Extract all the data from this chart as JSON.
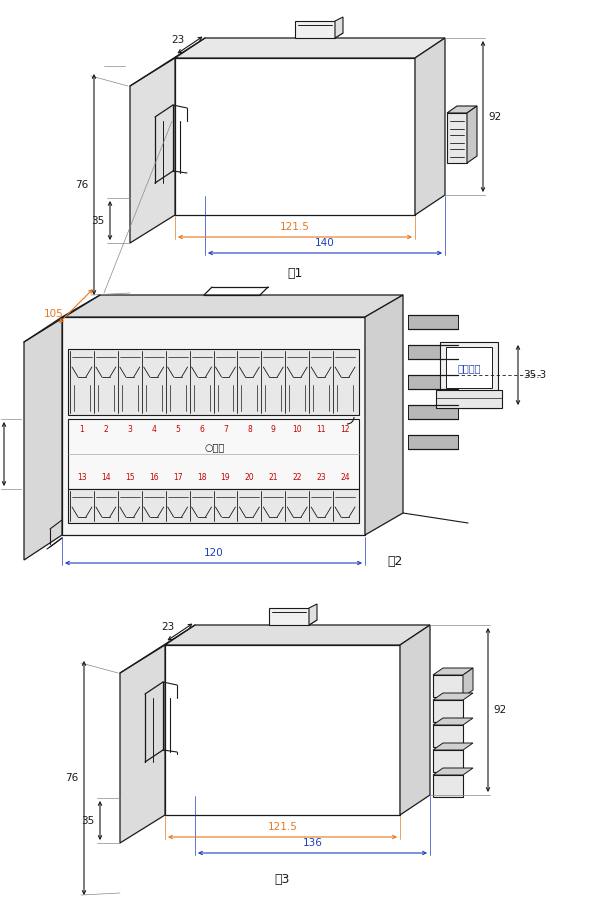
{
  "bg_color": "#ffffff",
  "line_color": "#1a1a1a",
  "dim_color_orange": "#E87820",
  "dim_color_blue": "#1E3EBF",
  "dim_color_red": "#CC0000",
  "fig1_label": "图1",
  "fig2_label": "图2",
  "fig3_label": "图3",
  "term_labels_top": [
    "1",
    "2",
    "3",
    "4",
    "5",
    "6",
    "7",
    "8",
    "9",
    "10",
    "11",
    "12"
  ],
  "term_labels_bot": [
    "13",
    "14",
    "15",
    "16",
    "17",
    "18",
    "19",
    "20",
    "21",
    "22",
    "23",
    "24"
  ],
  "power_label": "○电源",
  "guide_label": "安装导轨"
}
